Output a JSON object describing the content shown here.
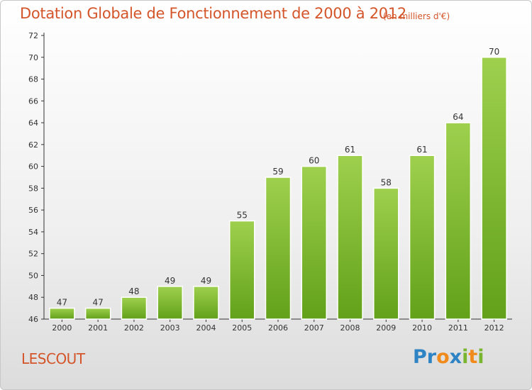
{
  "header": {
    "title": "Dotation Globale de Fonctionnement de 2000 à 2012",
    "unit": "(en milliers d'€)"
  },
  "footer": {
    "commune": "LESCOUT",
    "logo": "Proxiti"
  },
  "colors": {
    "title": "#d4552a",
    "bar_top": "#9ed04e",
    "bar_bottom": "#62a119",
    "logo_blue": "#2e83c4",
    "logo_orange": "#f08a1a",
    "logo_green": "#7ab530"
  },
  "chart_data": {
    "type": "bar",
    "categories": [
      "2000",
      "2001",
      "2002",
      "2003",
      "2004",
      "2005",
      "2006",
      "2007",
      "2008",
      "2009",
      "2010",
      "2011",
      "2012"
    ],
    "values": [
      47,
      47,
      48,
      49,
      49,
      55,
      59,
      60,
      61,
      58,
      61,
      64,
      70
    ],
    "title": "Dotation Globale de Fonctionnement de 2000 à 2012",
    "ylim": [
      46,
      72
    ],
    "yticks": [
      46,
      48,
      50,
      52,
      54,
      56,
      58,
      60,
      62,
      64,
      66,
      68,
      70,
      72
    ],
    "grid": false,
    "legend": "none"
  }
}
